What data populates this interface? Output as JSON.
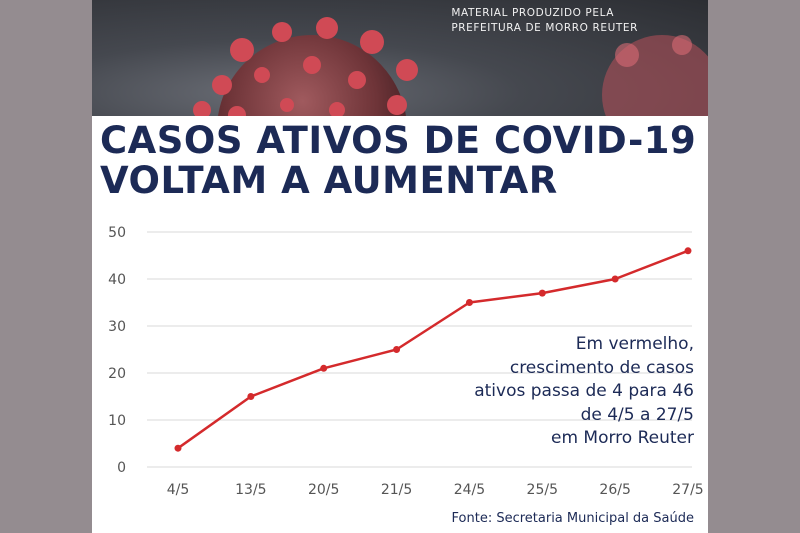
{
  "header": {
    "credit_line1": "MATERIAL PRODUZIDO PELA",
    "credit_line2": "PREFEITURA DE MORRO REUTER"
  },
  "title_lines": [
    "CASOS ATIVOS DE COVID-19",
    "VOLTAM A AUMENTAR"
  ],
  "annotation_lines": [
    "Em vermelho,",
    "crescimento de casos",
    "ativos passa de 4 para 46",
    "de 4/5 a 27/5",
    "em Morro Reuter"
  ],
  "source": "Fonte: Secretaria Municipal da Saúde",
  "colors": {
    "line": "#d42a2c",
    "title": "#1c2a56",
    "virus": "#c8404a"
  },
  "chart_data": {
    "type": "line",
    "categories": [
      "4/5",
      "13/5",
      "20/5",
      "21/5",
      "24/5",
      "25/5",
      "26/5",
      "27/5"
    ],
    "series": [
      {
        "values": [
          4,
          15,
          21,
          25,
          35,
          37,
          40,
          46
        ]
      }
    ],
    "yticks": [
      "0",
      "10",
      "20",
      "30",
      "40",
      "50"
    ],
    "ylim": [
      0,
      50
    ],
    "grid": true
  }
}
